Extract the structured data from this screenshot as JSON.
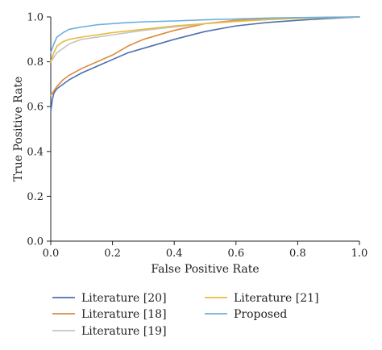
{
  "chart_data": {
    "type": "line",
    "title": "",
    "xlabel": "False Positive Rate",
    "ylabel": "True Positive Rate",
    "xlim": [
      0.0,
      1.0
    ],
    "ylim": [
      0.0,
      1.0
    ],
    "xticks": [
      0.0,
      0.2,
      0.4,
      0.6,
      0.8,
      1.0
    ],
    "yticks": [
      0.0,
      0.2,
      0.4,
      0.6,
      0.8,
      1.0
    ],
    "xtick_labels": [
      "0.0",
      "0.2",
      "0.4",
      "0.6",
      "0.8",
      "1.0"
    ],
    "ytick_labels": [
      "0.0",
      "0.2",
      "0.4",
      "0.6",
      "0.8",
      "1.0"
    ],
    "grid": false,
    "legend_position": "bottom",
    "series": [
      {
        "name": "Literature [20]",
        "color": "#4e6fb0",
        "x": [
          0.0,
          0.005,
          0.01,
          0.02,
          0.04,
          0.06,
          0.1,
          0.15,
          0.2,
          0.25,
          0.3,
          0.4,
          0.5,
          0.6,
          0.7,
          0.8,
          0.9,
          1.0
        ],
        "y": [
          0.58,
          0.63,
          0.66,
          0.68,
          0.7,
          0.72,
          0.75,
          0.78,
          0.81,
          0.84,
          0.86,
          0.9,
          0.935,
          0.96,
          0.975,
          0.985,
          0.993,
          1.0
        ]
      },
      {
        "name": "Literature [18]",
        "color": "#dd8a3e",
        "x": [
          0.0,
          0.01,
          0.02,
          0.04,
          0.06,
          0.1,
          0.15,
          0.2,
          0.25,
          0.3,
          0.4,
          0.5,
          0.6,
          0.7,
          0.8,
          0.9,
          1.0
        ],
        "y": [
          0.65,
          0.67,
          0.69,
          0.72,
          0.74,
          0.77,
          0.8,
          0.83,
          0.87,
          0.9,
          0.94,
          0.97,
          0.985,
          0.99,
          0.995,
          0.998,
          1.0
        ]
      },
      {
        "name": "Literature [19]",
        "color": "#c4c4c4",
        "x": [
          0.0,
          0.01,
          0.02,
          0.04,
          0.06,
          0.1,
          0.2,
          0.3,
          0.4,
          0.5,
          0.6,
          0.7,
          0.8,
          0.9,
          1.0
        ],
        "y": [
          0.8,
          0.82,
          0.84,
          0.86,
          0.88,
          0.9,
          0.92,
          0.94,
          0.955,
          0.97,
          0.98,
          0.988,
          0.994,
          0.997,
          1.0
        ]
      },
      {
        "name": "Literature [21]",
        "color": "#e8bb3f",
        "x": [
          0.0,
          0.01,
          0.02,
          0.04,
          0.06,
          0.1,
          0.2,
          0.3,
          0.4,
          0.5,
          0.6,
          0.7,
          0.8,
          0.9,
          1.0
        ],
        "y": [
          0.8,
          0.84,
          0.87,
          0.89,
          0.9,
          0.91,
          0.93,
          0.945,
          0.96,
          0.97,
          0.98,
          0.988,
          0.994,
          0.997,
          1.0
        ]
      },
      {
        "name": "Proposed",
        "color": "#6aaee0",
        "x": [
          0.0,
          0.01,
          0.02,
          0.04,
          0.06,
          0.1,
          0.15,
          0.2,
          0.25,
          0.3,
          0.4,
          0.5,
          0.6,
          0.7,
          0.8,
          0.9,
          1.0
        ],
        "y": [
          0.84,
          0.88,
          0.91,
          0.93,
          0.945,
          0.955,
          0.965,
          0.97,
          0.975,
          0.978,
          0.982,
          0.987,
          0.991,
          0.995,
          0.997,
          0.999,
          1.0
        ]
      }
    ],
    "legend_order": [
      0,
      3,
      1,
      4,
      2
    ]
  }
}
